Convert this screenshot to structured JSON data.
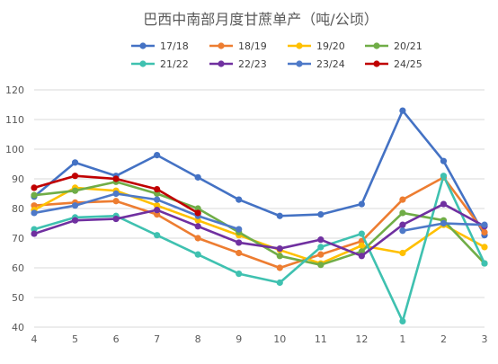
{
  "chart_data": {
    "type": "line",
    "title": "巴西中南部月度甘蔗单产（吨/公顷）",
    "xlabel": "",
    "ylabel": "",
    "categories": [
      "4",
      "5",
      "6",
      "7",
      "8",
      "9",
      "10",
      "11",
      "12",
      "1",
      "2",
      "3"
    ],
    "ylim": [
      40,
      120
    ],
    "yticks": [
      40,
      50,
      60,
      70,
      80,
      90,
      100,
      110,
      120
    ],
    "grid": true,
    "legend": "top",
    "series": [
      {
        "name": "17/18",
        "color": "#4472c4",
        "values": [
          84,
          95.5,
          91,
          98,
          90.5,
          83,
          77.5,
          78,
          81.5,
          113,
          96,
          71
        ]
      },
      {
        "name": "18/19",
        "color": "#ed7d31",
        "values": [
          81,
          82,
          82.5,
          78,
          70,
          65,
          60,
          64.5,
          69,
          83,
          90.5,
          72
        ]
      },
      {
        "name": "19/20",
        "color": "#ffc000",
        "values": [
          79.5,
          87,
          86,
          81,
          76,
          71,
          66,
          61.5,
          67.5,
          65,
          74.5,
          67
        ]
      },
      {
        "name": "20/21",
        "color": "#70ad47",
        "values": [
          84.5,
          86,
          89,
          85,
          80,
          72,
          64,
          61,
          65.5,
          78.5,
          76,
          61.5
        ]
      },
      {
        "name": "21/22",
        "color": "#3fc1b0",
        "values": [
          73,
          77,
          77.5,
          71,
          64.5,
          58,
          55,
          67,
          71.5,
          42,
          91,
          61.5
        ]
      },
      {
        "name": "22/23",
        "color": "#7030a0",
        "values": [
          71.5,
          76,
          76.5,
          79.5,
          74,
          68.5,
          66.5,
          69.5,
          64,
          74.5,
          81.5,
          74
        ]
      },
      {
        "name": "23/24",
        "color": "#4e79c8",
        "values": [
          78.5,
          81,
          85,
          83,
          77.5,
          73,
          null,
          null,
          null,
          72.5,
          75,
          74.5
        ]
      },
      {
        "name": "24/25",
        "color": "#c00000",
        "values": [
          87,
          91,
          90,
          86.5,
          78.5,
          null,
          null,
          null,
          null,
          null,
          null,
          null
        ]
      }
    ]
  }
}
